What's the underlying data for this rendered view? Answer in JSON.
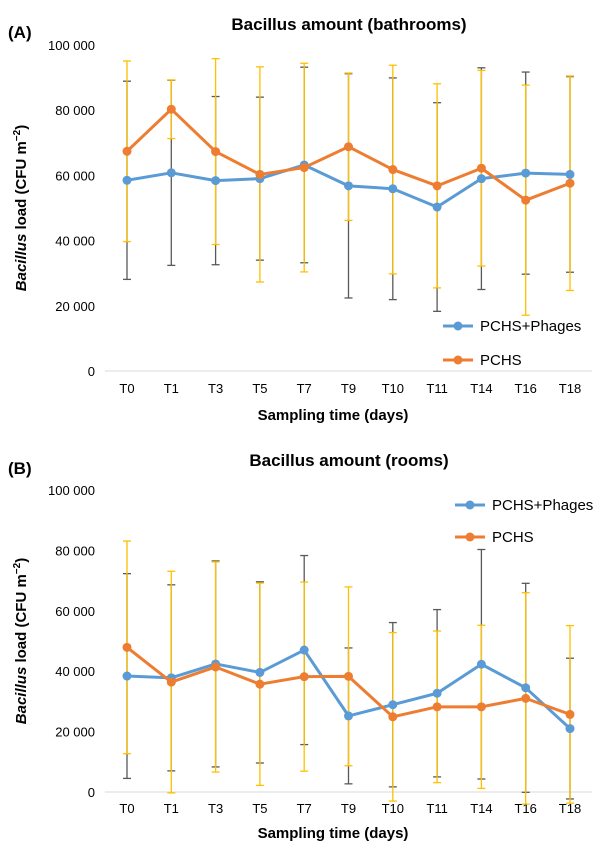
{
  "chart_data": [
    {
      "panel": "(A)",
      "type": "line",
      "title": "Bacillus amount (bathrooms)",
      "xlabel": "Sampling time (days)",
      "ylabel_italic": "Bacillus",
      "ylabel_rest": " load (CFU m",
      "ylabel_sup": "−2",
      "ylabel_close": ")",
      "categories": [
        "T0",
        "T1",
        "T3",
        "T5",
        "T7",
        "T9",
        "T10",
        "T11",
        "T14",
        "T16",
        "T18"
      ],
      "ylim": [
        0,
        100000
      ],
      "yticks": [
        0,
        20000,
        40000,
        60000,
        80000,
        100000
      ],
      "ytick_labels": [
        "0",
        "20 000",
        "40 000",
        "60 000",
        "80 000",
        "100 000"
      ],
      "legend_position": "bottom-right",
      "series": [
        {
          "name": "PCHS+Phages",
          "color": "#5b9bd5",
          "error_color": "#595959",
          "values": [
            58500,
            60800,
            58400,
            59000,
            63200,
            56800,
            55900,
            50300,
            59000,
            60700,
            60300
          ],
          "error": [
            30400,
            28400,
            25800,
            25000,
            30000,
            34400,
            34000,
            32000,
            34000,
            31000,
            30000
          ]
        },
        {
          "name": "PCHS",
          "color": "#ed7d31",
          "error_color": "#ffc000",
          "values": [
            67400,
            80300,
            67300,
            60300,
            62400,
            68800,
            61800,
            56800,
            62200,
            52400,
            57600
          ],
          "error": [
            27700,
            9000,
            28500,
            33000,
            32000,
            22600,
            32000,
            31300,
            30000,
            35300,
            32900
          ]
        }
      ]
    },
    {
      "panel": "(B)",
      "type": "line",
      "title": "Bacillus amount (rooms)",
      "xlabel": "Sampling time (days)",
      "ylabel_italic": "Bacillus",
      "ylabel_rest": " load (CFU m",
      "ylabel_sup": "−2",
      "ylabel_close": ")",
      "categories": [
        "T0",
        "T1",
        "T3",
        "T5",
        "T7",
        "T9",
        "T10",
        "T11",
        "T14",
        "T16",
        "T18"
      ],
      "ylim": [
        0,
        100000
      ],
      "yticks": [
        0,
        20000,
        40000,
        60000,
        80000,
        100000
      ],
      "ytick_labels": [
        "0",
        "20 000",
        "40 000",
        "60 000",
        "80 000",
        "100 000"
      ],
      "legend_position": "top-right",
      "series": [
        {
          "name": "PCHS+Phages",
          "color": "#5b9bd5",
          "error_color": "#595959",
          "values": [
            38400,
            37800,
            42400,
            39600,
            47000,
            25200,
            28900,
            32700,
            42300,
            34500,
            21000
          ],
          "error": [
            33900,
            30800,
            34100,
            30000,
            31300,
            22500,
            27200,
            27700,
            38000,
            34600,
            23300
          ]
        },
        {
          "name": "PCHS",
          "color": "#ed7d31",
          "error_color": "#ffc000",
          "values": [
            47900,
            36400,
            41400,
            35700,
            38200,
            38300,
            24900,
            28200,
            28200,
            31000,
            25700
          ],
          "error": [
            35200,
            36700,
            34800,
            33500,
            31300,
            29600,
            27900,
            25100,
            27000,
            35000,
            29400
          ]
        }
      ]
    }
  ]
}
